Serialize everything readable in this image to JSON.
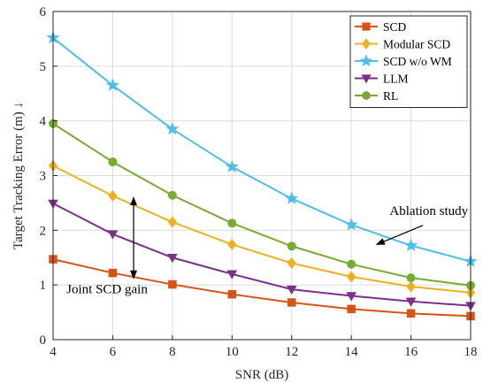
{
  "chart_data": {
    "type": "line",
    "title": "",
    "xlabel": "SNR (dB)",
    "ylabel": "Target Tracking Error (m) ↓",
    "x": [
      4,
      6,
      8,
      10,
      12,
      14,
      16,
      18
    ],
    "xticks": [
      4,
      6,
      8,
      10,
      12,
      14,
      16,
      18
    ],
    "yticks": [
      0,
      1,
      2,
      3,
      4,
      5,
      6
    ],
    "xlim": [
      4,
      18
    ],
    "ylim": [
      0,
      6
    ],
    "grid": true,
    "legend_position": "top-right",
    "series": [
      {
        "name": "SCD",
        "color": "#D95319",
        "marker": "square",
        "values": [
          1.47,
          1.22,
          1.01,
          0.83,
          0.68,
          0.56,
          0.48,
          0.43
        ]
      },
      {
        "name": "Modular SCD",
        "color": "#EDB120",
        "marker": "diamond",
        "values": [
          3.18,
          2.63,
          2.15,
          1.74,
          1.4,
          1.15,
          0.97,
          0.86
        ]
      },
      {
        "name": "SCD w/o WM",
        "color": "#4DBEEE",
        "marker": "star",
        "values": [
          5.52,
          4.65,
          3.85,
          3.16,
          2.58,
          2.1,
          1.72,
          1.43
        ]
      },
      {
        "name": "LLM",
        "color": "#7E2F8E",
        "marker": "triangle-down",
        "values": [
          2.49,
          1.93,
          1.5,
          1.2,
          0.92,
          0.8,
          0.7,
          0.62
        ]
      },
      {
        "name": "RL",
        "color": "#77AC30",
        "marker": "circle",
        "values": [
          3.95,
          3.25,
          2.64,
          2.13,
          1.71,
          1.38,
          1.13,
          0.99
        ]
      }
    ],
    "annotations": [
      {
        "text": "Ablation study",
        "arrow": "single",
        "arrow_from": [
          16.4,
          2.09
        ],
        "arrow_to": [
          14.85,
          1.74
        ]
      },
      {
        "text": "Joint SCD gain",
        "arrow": "double",
        "arrow_from": [
          6.7,
          2.6
        ],
        "arrow_to": [
          6.7,
          1.12
        ]
      }
    ]
  }
}
